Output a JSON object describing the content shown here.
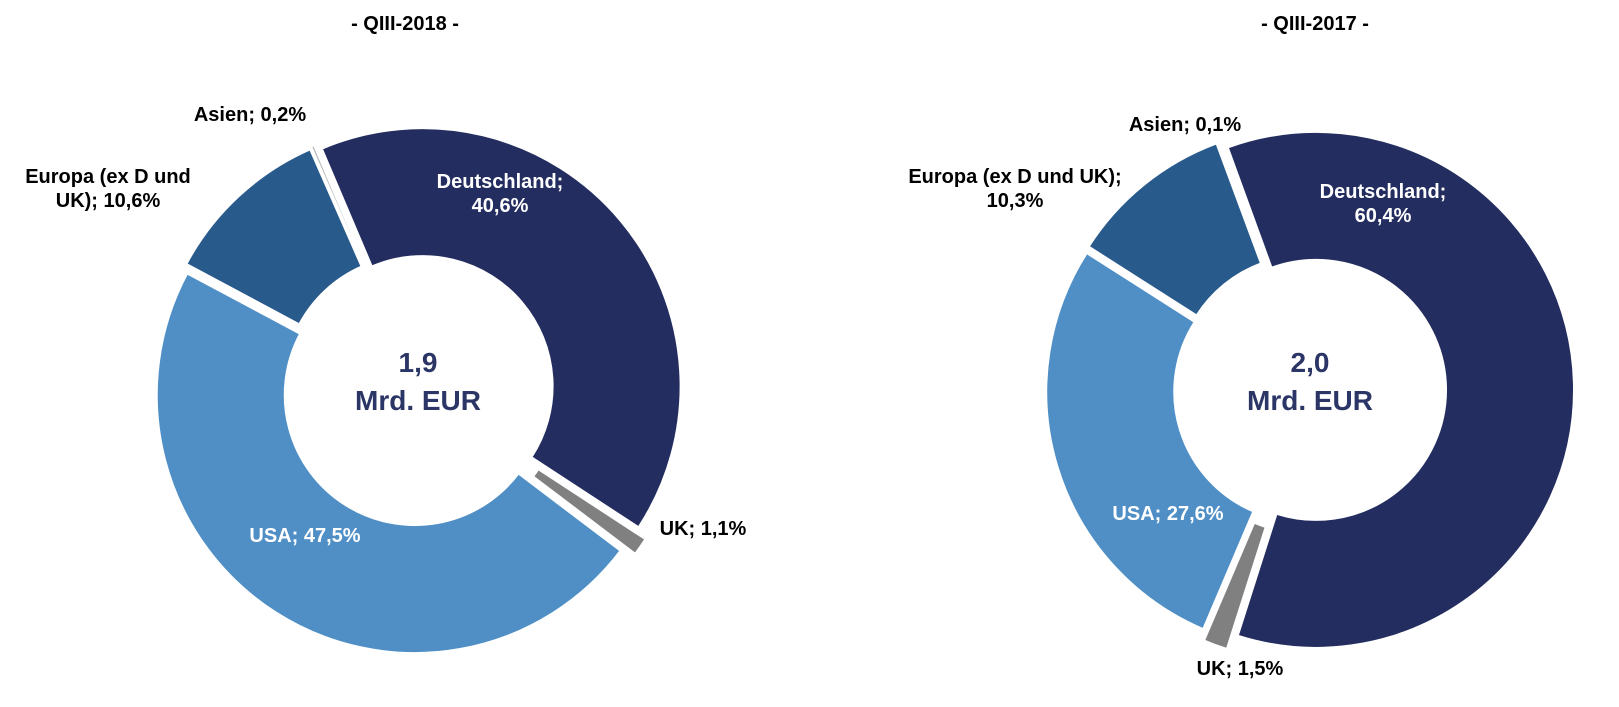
{
  "chart_data": [
    {
      "type": "donut",
      "title": "- QIII-2018 -",
      "values": [
        40.6,
        1.1,
        47.5,
        10.6,
        0.2
      ],
      "value_labels": [
        "Deutschland; 40,6%",
        "UK; 1,1%",
        "USA; 47,5%",
        "Europa (ex D und UK); 10,6%",
        "Asien; 0,2%"
      ],
      "colors": [
        "#232d5f",
        "#808080",
        "#4f8fc6",
        "#285a8c",
        "#b4b4b4"
      ],
      "center_label": [
        "1,9",
        "Mrd. EUR"
      ]
    },
    {
      "type": "donut",
      "title": "- QIII-2017 -",
      "values": [
        60.4,
        1.5,
        27.6,
        10.3,
        0.1
      ],
      "value_labels": [
        "Deutschland; 60,4%",
        "UK; 1,5%",
        "USA; 27,6%",
        "Europa (ex D und UK); 10,3%",
        "Asien; 0,1%"
      ],
      "colors": [
        "#232d5f",
        "#808080",
        "#4f8fc6",
        "#285a8c",
        "#4f8fc6"
      ],
      "center_label": [
        "2,0",
        "Mrd. EUR"
      ]
    }
  ]
}
